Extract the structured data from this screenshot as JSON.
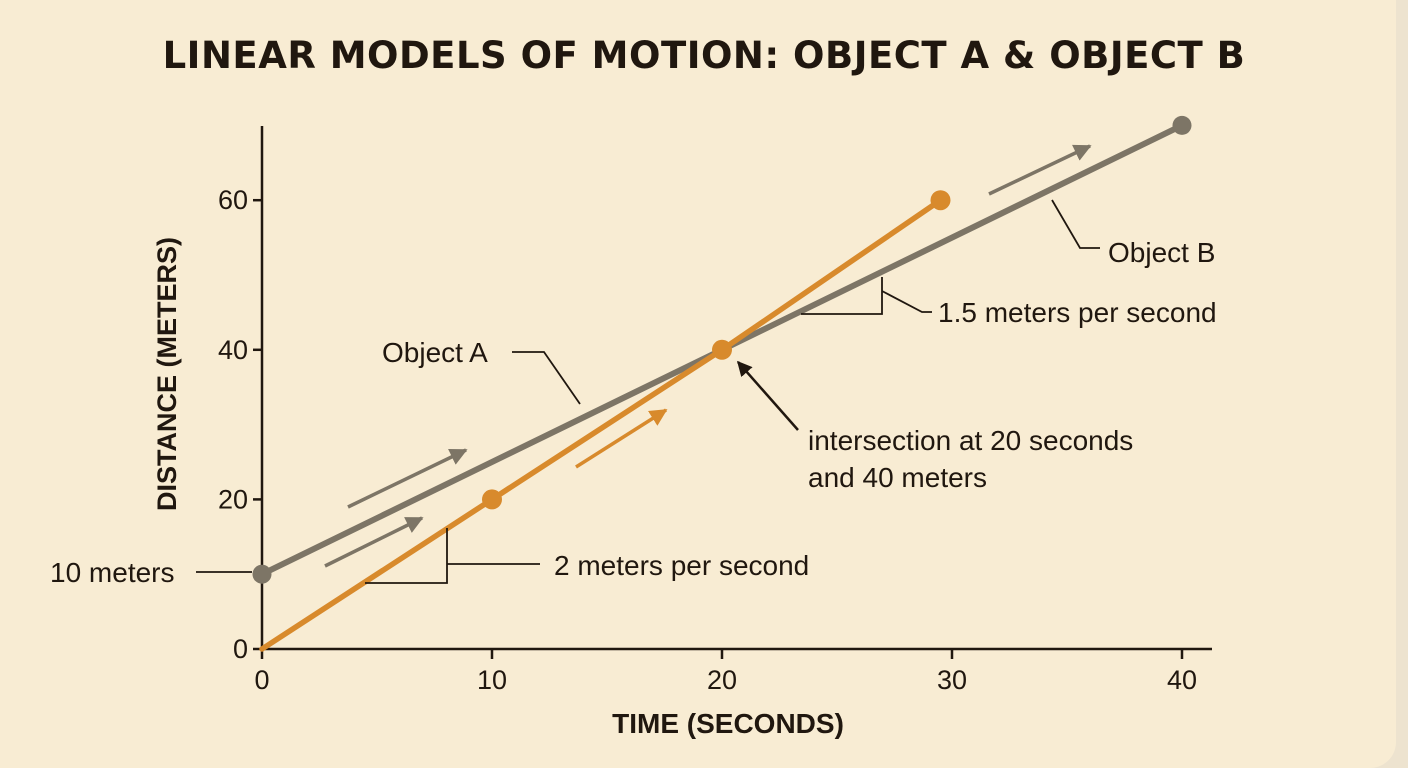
{
  "colors": {
    "background": "#f8ecd3",
    "object_a": "#d88a2c",
    "object_b": "#7d7566",
    "text": "#20170f"
  },
  "chart_data": {
    "type": "line",
    "title": "LINEAR MODELS OF MOTION: OBJECT A & OBJECT B",
    "xlabel": "TIME (SECONDS)",
    "ylabel": "DISTANCE (METERS)",
    "xlim": [
      0,
      41
    ],
    "ylim": [
      0,
      70
    ],
    "x_ticks": [
      0,
      10,
      20,
      30,
      40
    ],
    "y_ticks": [
      0,
      20,
      40,
      60
    ],
    "grid": false,
    "legend": "none",
    "series": [
      {
        "name": "Object A",
        "color": "#d88a2c",
        "x": [
          0,
          10,
          20,
          29.5
        ],
        "y": [
          0,
          20,
          40,
          60
        ],
        "markers": [
          [
            10,
            20
          ],
          [
            20,
            40
          ],
          [
            29.5,
            60
          ]
        ]
      },
      {
        "name": "Object B",
        "color": "#7d7566",
        "x": [
          0,
          20,
          40
        ],
        "y": [
          10,
          40,
          70
        ],
        "markers": [
          [
            0,
            10
          ],
          [
            40,
            70
          ]
        ]
      }
    ],
    "annotations": {
      "object_a_label": "Object A",
      "object_b_label": "Object B",
      "start_b": "10 meters",
      "slope_a": "2 meters per second",
      "slope_b": "1.5 meters per second",
      "intersection_line1": "intersection at 20 seconds",
      "intersection_line2": "and 40 meters"
    }
  }
}
